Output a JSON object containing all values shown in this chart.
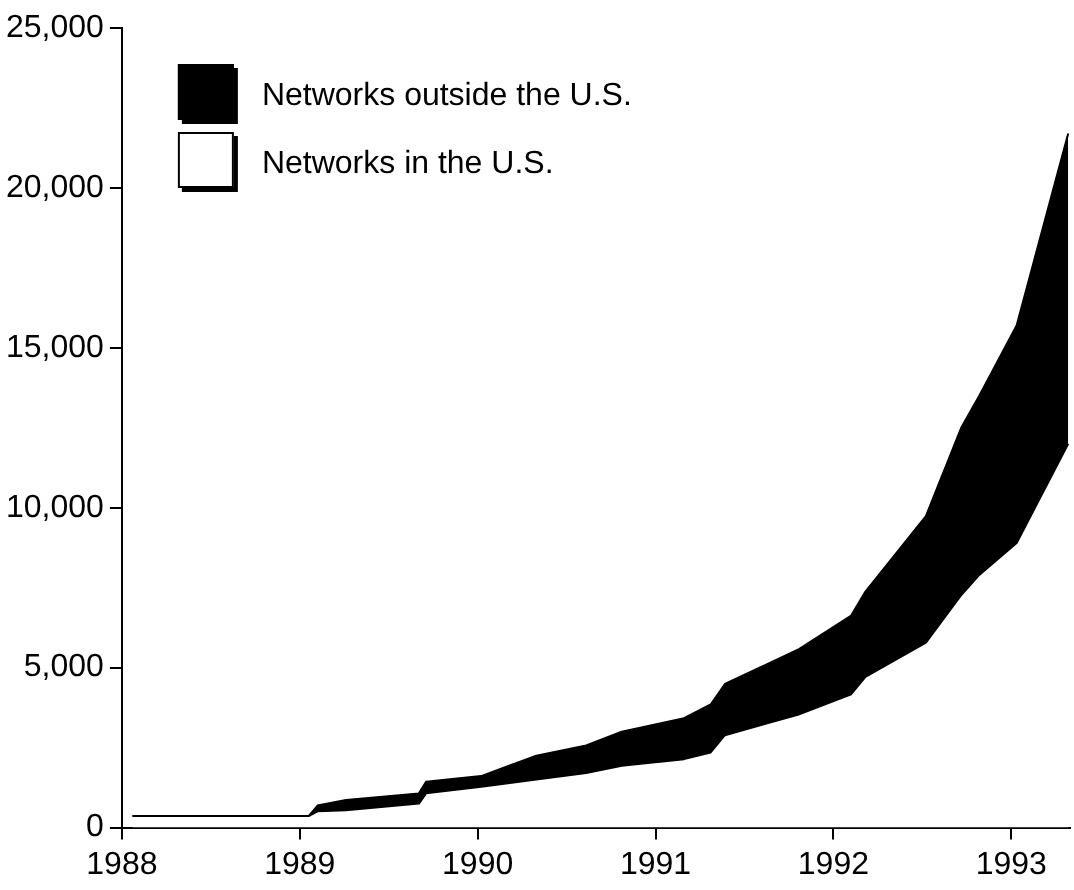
{
  "chart_data": {
    "type": "area",
    "stacked": true,
    "x": [
      1988.06,
      1989.05,
      1989.1,
      1989.26,
      1989.67,
      1989.71,
      1990.02,
      1990.33,
      1990.61,
      1990.81,
      1991.16,
      1991.31,
      1991.39,
      1991.8,
      1992.1,
      1992.18,
      1992.52,
      1992.72,
      1992.82,
      1993.03,
      1993.32
    ],
    "series": [
      {
        "name": "Networks in the U.S.",
        "color": "#ffffff",
        "values": [
          360,
          360,
          510,
          540,
          750,
          1070,
          1280,
          1500,
          1710,
          1930,
          2140,
          2350,
          2890,
          3530,
          4170,
          4710,
          5780,
          7280,
          7900,
          8900,
          12000
        ]
      },
      {
        "name": "Networks outside the U.S.",
        "color": "#000000",
        "values": [
          0,
          0,
          180,
          320,
          320,
          360,
          330,
          750,
          860,
          1070,
          1280,
          1500,
          1600,
          2030,
          2460,
          2670,
          3960,
          5240,
          5600,
          6800,
          9700
        ]
      }
    ],
    "xlim": [
      1988,
      1993.33
    ],
    "xticks": [
      1988,
      1989,
      1990,
      1991,
      1992,
      1993
    ],
    "ylim": [
      0,
      25000
    ],
    "yticks": [
      0,
      {
        "value": 5000,
        "label": "5,000"
      },
      {
        "value": 10000,
        "label": "10,000"
      },
      {
        "value": 15000,
        "label": "15,000"
      },
      {
        "value": 20000,
        "label": "20,000"
      },
      {
        "value": 25000,
        "label": "25,000"
      }
    ],
    "grid": false,
    "legend": "top left"
  }
}
